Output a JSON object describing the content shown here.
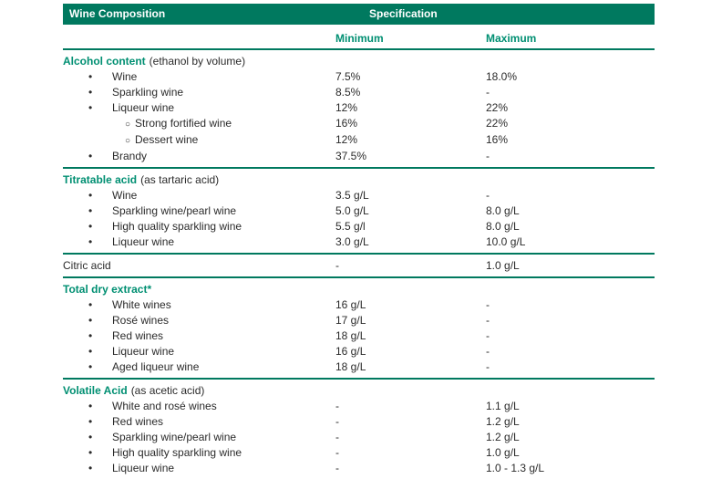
{
  "colors": {
    "bar": "#00795F",
    "accent": "#008F72",
    "line": "#00795F",
    "text": "#2B2B2B"
  },
  "icons": {
    "bullet_filled": "•",
    "bullet_open": "○"
  },
  "header": {
    "col_label": "Wine Composition",
    "spec_label": "Specification"
  },
  "subheader": {
    "min_label": "Minimum",
    "max_label": "Maximum"
  },
  "sections": [
    {
      "title": "Alcohol content",
      "note": "(ethanol by volume)",
      "style": "accent",
      "min": "",
      "max": "",
      "rows": [
        {
          "level": 1,
          "label": "Wine",
          "min": "7.5%",
          "max": "18.0%"
        },
        {
          "level": 1,
          "label": "Sparkling wine",
          "min": "8.5%",
          "max": "-"
        },
        {
          "level": 1,
          "label": "Liqueur wine",
          "min": "12%",
          "max": "22%"
        },
        {
          "level": 2,
          "label": "Strong fortified wine",
          "min": "16%",
          "max": "22%"
        },
        {
          "level": 2,
          "label": "Dessert wine",
          "min": "12%",
          "max": "16%"
        },
        {
          "level": 1,
          "label": "Brandy",
          "min": "37.5%",
          "max": "-"
        }
      ]
    },
    {
      "title": "Titratable acid",
      "note": "(as tartaric acid)",
      "style": "accent",
      "min": "",
      "max": "",
      "rows": [
        {
          "level": 1,
          "label": "Wine",
          "min": "3.5 g/L",
          "max": "-"
        },
        {
          "level": 1,
          "label": "Sparkling wine/pearl wine",
          "min": "5.0 g/L",
          "max": "8.0 g/L"
        },
        {
          "level": 1,
          "label": "High quality sparkling wine",
          "min": "5.5 g/l",
          "max": "8.0 g/L"
        },
        {
          "level": 1,
          "label": "Liqueur wine",
          "min": "3.0 g/L",
          "max": "10.0 g/L"
        }
      ]
    },
    {
      "title": "Citric acid",
      "note": "",
      "style": "plain",
      "min": "-",
      "max": "1.0 g/L",
      "rows": []
    },
    {
      "title": "Total dry extract*",
      "note": "",
      "style": "accent",
      "min": "",
      "max": "",
      "rows": [
        {
          "level": 1,
          "label": "White wines",
          "min": "16 g/L",
          "max": "-"
        },
        {
          "level": 1,
          "label": "Rosé wines",
          "min": "17 g/L",
          "max": "-"
        },
        {
          "level": 1,
          "label": "Red wines",
          "min": "18 g/L",
          "max": "-"
        },
        {
          "level": 1,
          "label": "Liqueur wine",
          "min": "16 g/L",
          "max": "-"
        },
        {
          "level": 1,
          "label": "Aged liqueur wine",
          "min": "18 g/L",
          "max": "-"
        }
      ]
    },
    {
      "title": "Volatile Acid",
      "note": "(as acetic acid)",
      "style": "accent",
      "min": "",
      "max": "",
      "rows": [
        {
          "level": 1,
          "label": "White and rosé wines",
          "min": "-",
          "max": "1.1 g/L"
        },
        {
          "level": 1,
          "label": "Red wines",
          "min": "-",
          "max": "1.2 g/L"
        },
        {
          "level": 1,
          "label": "Sparkling wine/pearl wine",
          "min": "-",
          "max": "1.2 g/L"
        },
        {
          "level": 1,
          "label": "High quality sparkling wine",
          "min": "-",
          "max": "1.0 g/L"
        },
        {
          "level": 1,
          "label": "Liqueur wine",
          "min": "-",
          "max": "1.0 - 1.3 g/L"
        }
      ]
    }
  ]
}
